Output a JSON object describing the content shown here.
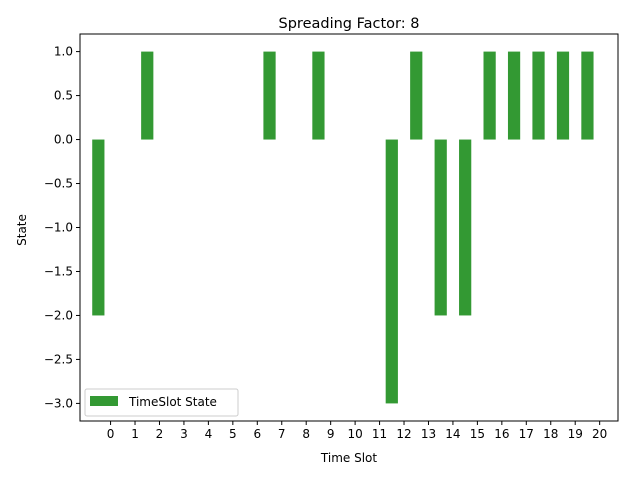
{
  "chart_data": {
    "type": "bar",
    "title": "Spreading Factor: 8",
    "xlabel": "Time Slot",
    "ylabel": "State",
    "x_ticks": [
      0,
      1,
      2,
      3,
      4,
      5,
      6,
      7,
      8,
      9,
      10,
      11,
      12,
      13,
      14,
      15,
      16,
      17,
      18,
      19,
      20
    ],
    "y_ticks": [
      "1.0",
      "0.5",
      "0.0",
      "−0.5",
      "−1.0",
      "−1.5",
      "−2.0",
      "−2.5",
      "−3.0"
    ],
    "xlim": [
      -1.25,
      20.75
    ],
    "ylim": [
      -3.2,
      1.2
    ],
    "bar_width": 0.5,
    "legend_position": "lower left",
    "grid": false,
    "series": [
      {
        "name": "TimeSlot State",
        "color": "#339933",
        "x": [
          -0.5,
          1.5,
          6.5,
          8.5,
          11.5,
          12.5,
          13.5,
          14.5,
          15.5,
          16.5,
          17.5,
          18.5,
          19.5
        ],
        "values": [
          -2,
          1,
          1,
          1,
          -3,
          1,
          -2,
          -2,
          1,
          1,
          1,
          1,
          1
        ]
      }
    ]
  }
}
